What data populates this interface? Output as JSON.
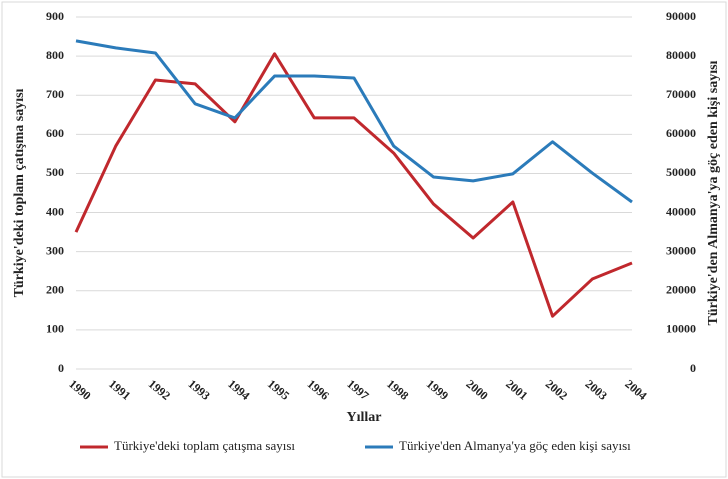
{
  "chart_data": {
    "type": "line",
    "x_label": "Yıllar",
    "y_label": "Türkiye'deki toplam çatışma sayısı",
    "y2_label": "Türkiye'den Almanya'ya göç eden kişi sayısı",
    "categories": [
      "1990",
      "1991",
      "1992",
      "1993",
      "1994",
      "1995",
      "1996",
      "1997",
      "1998",
      "1999",
      "2000",
      "2001",
      "2002",
      "2003",
      "2004"
    ],
    "series": [
      {
        "name": "Türkiye'deki toplam çatışma sayısı",
        "color": "#c0282d",
        "axis": "y",
        "values": [
          350,
          570,
          739,
          729,
          632,
          806,
          642,
          642,
          552,
          422,
          335,
          427,
          135,
          230,
          271
        ]
      },
      {
        "name": "Türkiye'den Almanya'ya göç eden kişi sayısı",
        "color": "#2b7bba",
        "axis": "y2",
        "values": [
          83900,
          82100,
          80800,
          67800,
          64200,
          74900,
          74900,
          74400,
          57000,
          49100,
          48100,
          49900,
          58100,
          50100,
          42700
        ]
      }
    ],
    "ylim": [
      0,
      900
    ],
    "yticks": [
      0,
      100,
      200,
      300,
      400,
      500,
      600,
      700,
      800,
      900
    ],
    "y2lim": [
      0,
      90000
    ],
    "y2ticks": [
      0,
      10000,
      20000,
      30000,
      40000,
      50000,
      60000,
      70000,
      80000,
      90000
    ],
    "grid": true,
    "legend": "bottom"
  }
}
